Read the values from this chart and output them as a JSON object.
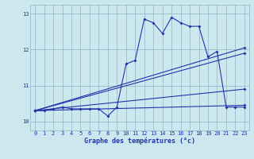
{
  "xlabel": "Graphe des températures (°c)",
  "background_color": "#cce8ee",
  "grid_color": "#99bbcc",
  "line_color": "#2233aa",
  "xlim": [
    -0.5,
    23.5
  ],
  "ylim": [
    9.75,
    13.25
  ],
  "yticks": [
    10,
    11,
    12,
    13
  ],
  "xticks": [
    0,
    1,
    2,
    3,
    4,
    5,
    6,
    7,
    8,
    9,
    10,
    11,
    12,
    13,
    14,
    15,
    16,
    17,
    18,
    19,
    20,
    21,
    22,
    23
  ],
  "series": [
    {
      "x": [
        0,
        1,
        2,
        3,
        4,
        5,
        6,
        7,
        8,
        9,
        10,
        11,
        12,
        13,
        14,
        15,
        16,
        17,
        18,
        19,
        20,
        21,
        22,
        23
      ],
      "y": [
        10.3,
        10.3,
        10.35,
        10.4,
        10.35,
        10.35,
        10.35,
        10.35,
        10.15,
        10.4,
        11.6,
        11.7,
        12.85,
        12.75,
        12.45,
        12.9,
        12.75,
        12.65,
        12.65,
        11.8,
        11.95,
        10.4,
        10.4,
        10.4
      ]
    },
    {
      "x": [
        0,
        23
      ],
      "y": [
        10.3,
        10.45
      ]
    },
    {
      "x": [
        0,
        23
      ],
      "y": [
        10.3,
        10.9
      ]
    },
    {
      "x": [
        0,
        23
      ],
      "y": [
        10.3,
        11.9
      ]
    },
    {
      "x": [
        0,
        23
      ],
      "y": [
        10.3,
        12.05
      ]
    }
  ]
}
